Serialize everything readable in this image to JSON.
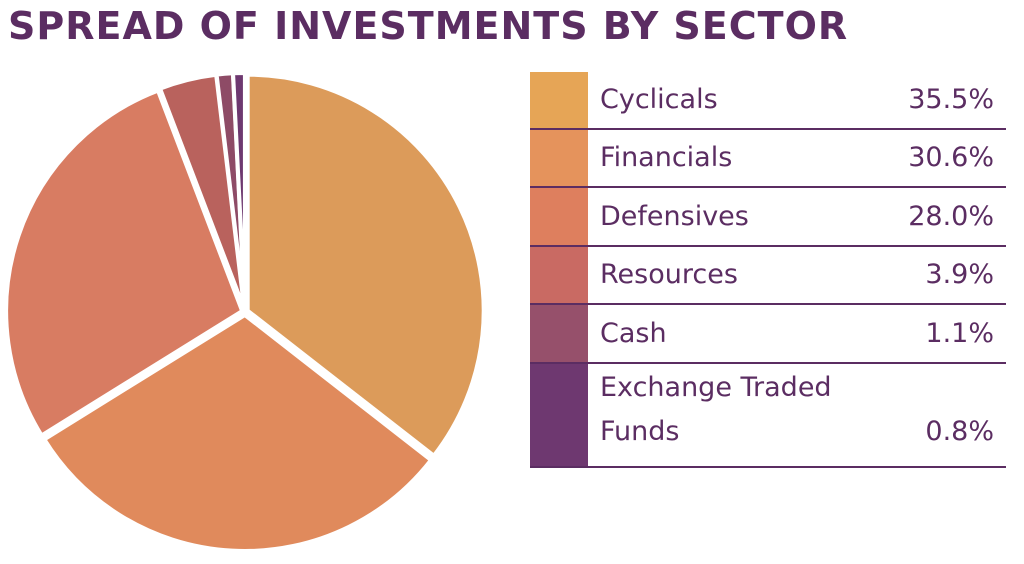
{
  "title": "SPREAD OF INVESTMENTS BY SECTOR",
  "chart_data": {
    "type": "pie",
    "title": "SPREAD OF INVESTMENTS BY SECTOR",
    "categories": [
      "Cyclicals",
      "Financials",
      "Defensives",
      "Resources",
      "Cash",
      "Exchange Traded Funds"
    ],
    "values": [
      35.5,
      30.6,
      28.0,
      3.9,
      1.1,
      0.8
    ],
    "value_labels": [
      "35.5%",
      "30.6%",
      "28.0%",
      "3.9%",
      "1.1%",
      "0.8%"
    ],
    "colors": [
      "#dc9b5a",
      "#e08a5c",
      "#d87c62",
      "#b9625d",
      "#8e4b66",
      "#6e3870"
    ],
    "legend_placement": "right"
  },
  "legend": [
    {
      "label": "Cyclicals",
      "value": "35.5%",
      "color": "#e6a556"
    },
    {
      "label": "Financials",
      "value": "30.6%",
      "color": "#e5935c"
    },
    {
      "label": "Defensives",
      "value": "28.0%",
      "color": "#de7f5e"
    },
    {
      "label": "Resources",
      "value": "3.9%",
      "color": "#c96a63"
    },
    {
      "label": "Cash",
      "value": "1.1%",
      "color": "#96506b"
    },
    {
      "label": "Exchange Traded\nFunds",
      "value": "0.8%",
      "color": "#6e3870"
    }
  ]
}
